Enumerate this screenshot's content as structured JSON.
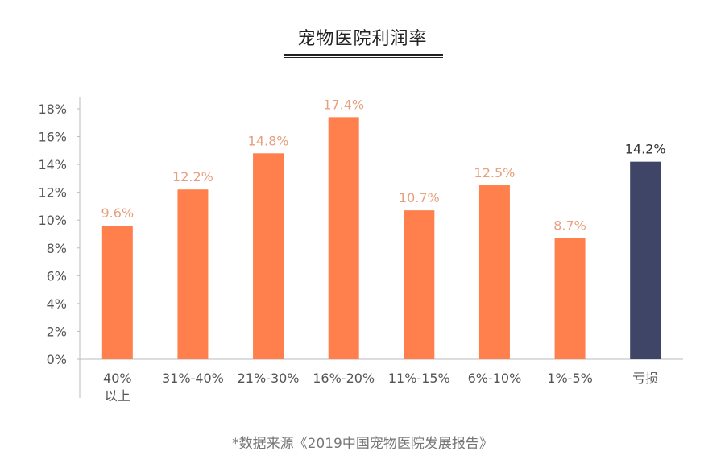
{
  "chart_data": {
    "type": "bar",
    "title": "宠物医院利润率",
    "categories": [
      "40%以上",
      "31%-40%",
      "21%-30%",
      "16%-20%",
      "11%-15%",
      "6%-10%",
      "1%-5%",
      "亏损"
    ],
    "category_lines": [
      [
        "40%",
        "以上"
      ],
      [
        "31%-40%"
      ],
      [
        "21%-30%"
      ],
      [
        "16%-20%"
      ],
      [
        "11%-15%"
      ],
      [
        "6%-10%"
      ],
      [
        "1%-5%"
      ],
      [
        "亏损"
      ]
    ],
    "values": [
      9.6,
      12.2,
      14.8,
      17.4,
      10.7,
      12.5,
      8.7,
      14.2
    ],
    "value_labels": [
      "9.6%",
      "12.2%",
      "14.8%",
      "17.4%",
      "10.7%",
      "12.5%",
      "8.7%",
      "14.2%"
    ],
    "y_ticks": [
      0,
      2,
      4,
      6,
      8,
      10,
      12,
      14,
      16,
      18
    ],
    "y_tick_labels": [
      "0%",
      "2%",
      "4%",
      "6%",
      "8%",
      "10%",
      "12%",
      "14%",
      "16%",
      "18%"
    ],
    "ylim": [
      0,
      18
    ],
    "grid": false,
    "colors": {
      "bar": "#ff7f4d",
      "highlight_bar": "#3e4566",
      "bar_label": "#e6a07f",
      "highlight_label": "#333333",
      "axis": "#bbbbbb",
      "tick_label": "#555555"
    },
    "highlight_index": 7
  },
  "footnote": "*数据来源《2019中国宠物医院发展报告》"
}
